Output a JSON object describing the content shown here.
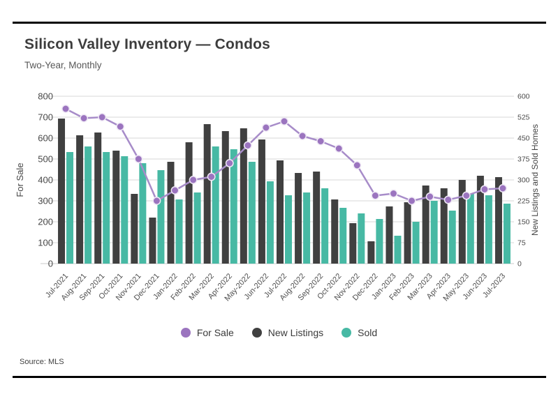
{
  "chart_data": {
    "type": "bar",
    "combo": "bars-plus-line",
    "title": "Silicon Valley Inventory — Condos",
    "subtitle": "Two-Year, Monthly",
    "source": "Source: MLS",
    "grid": true,
    "legend_position": "bottom",
    "categories": [
      "Jul-2021",
      "Aug-2021",
      "Sep-2021",
      "Oct-2021",
      "Nov-2021",
      "Dec-2021",
      "Jan-2022",
      "Feb-2022",
      "Mar-2022",
      "Apr-2022",
      "May-2022",
      "Jun-2022",
      "Jul-2022",
      "Aug-2022",
      "Sep-2022",
      "Oct-2022",
      "Nov-2022",
      "Dec-2022",
      "Jan-2023",
      "Feb-2023",
      "Mar-2023",
      "Apr-2023",
      "May-2023",
      "Jun-2023",
      "Jul-2023"
    ],
    "series": [
      {
        "name": "For Sale",
        "render": "line",
        "axis": "left",
        "color": "#9b74bf",
        "line_color": "#a78cc9",
        "values": [
          740,
          695,
          700,
          655,
          500,
          300,
          350,
          400,
          415,
          480,
          565,
          650,
          680,
          610,
          585,
          550,
          470,
          325,
          335,
          300,
          320,
          305,
          325,
          355,
          360
        ]
      },
      {
        "name": "New Listings",
        "render": "bar",
        "axis": "right",
        "color": "#404040",
        "values": [
          520,
          460,
          470,
          405,
          250,
          165,
          365,
          435,
          500,
          475,
          485,
          445,
          370,
          325,
          330,
          230,
          145,
          80,
          205,
          220,
          280,
          270,
          300,
          315,
          310
        ]
      },
      {
        "name": "Sold",
        "render": "bar",
        "axis": "right",
        "color": "#47b9a4",
        "values": [
          400,
          420,
          400,
          385,
          360,
          335,
          230,
          255,
          420,
          410,
          365,
          295,
          245,
          255,
          270,
          200,
          180,
          160,
          100,
          150,
          225,
          190,
          250,
          245,
          215
        ]
      }
    ],
    "left_axis": {
      "label": "For Sale",
      "min": 0,
      "max": 800,
      "step": 100
    },
    "right_axis": {
      "label": "New Listings and Sold Homes",
      "min": 0,
      "max": 600,
      "step": 75
    },
    "colors": {
      "gridline": "#d7d7d7",
      "baseline": "#c9c9c9",
      "tick_text": "#4a4a4a",
      "axis_title_text": "#454545",
      "point_ring": "#efe9f5"
    }
  }
}
